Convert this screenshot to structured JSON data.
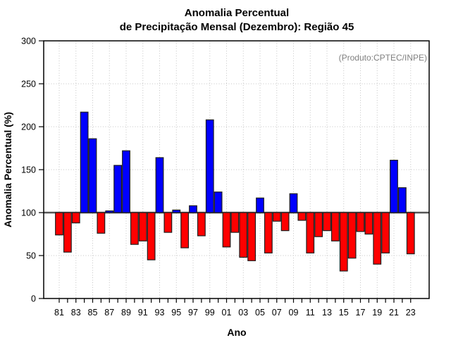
{
  "chart_data": {
    "type": "bar",
    "title": "Anomalia Percentual de Precipitação Mensal (Dezembro): Região 45",
    "title_line1": "Anomalia Percentual",
    "title_line2": "de Precipitação Mensal (Dezembro): Região 45",
    "annotation": "(Produto:CPTEC/INPE)",
    "xlabel": "Ano",
    "ylabel": "Anomalia Percentual (%)",
    "ylim": [
      0,
      300
    ],
    "yticks": [
      0,
      50,
      100,
      150,
      200,
      250,
      300
    ],
    "baseline": 100,
    "grid": true,
    "legend": "none",
    "categories": [
      "81",
      "82",
      "83",
      "84",
      "85",
      "86",
      "87",
      "88",
      "89",
      "90",
      "91",
      "92",
      "93",
      "94",
      "95",
      "96",
      "97",
      "98",
      "99",
      "00",
      "01",
      "02",
      "03",
      "04",
      "05",
      "06",
      "07",
      "08",
      "09",
      "10",
      "11",
      "12",
      "13",
      "14",
      "15",
      "16",
      "17",
      "18",
      "19",
      "20",
      "21",
      "22",
      "23"
    ],
    "x_tick_labels": [
      "81",
      "83",
      "85",
      "87",
      "89",
      "91",
      "93",
      "95",
      "97",
      "99",
      "01",
      "03",
      "05",
      "07",
      "09",
      "11",
      "13",
      "15",
      "17",
      "19",
      "21",
      "23"
    ],
    "values": [
      74,
      54,
      88,
      217,
      186,
      76,
      102,
      155,
      172,
      63,
      67,
      45,
      164,
      77,
      103,
      59,
      108,
      73,
      208,
      124,
      60,
      77,
      48,
      44,
      117,
      53,
      90,
      79,
      122,
      91,
      53,
      72,
      79,
      67,
      32,
      47,
      78,
      75,
      40,
      53,
      161,
      129,
      52
    ],
    "colors": {
      "above_baseline": "#0000ff",
      "below_baseline": "#ff0000",
      "bar_border": "#1e1e1e",
      "baseline_line": "#555555",
      "gridline": "#c4c4c4",
      "frame": "#000000",
      "annotation_text": "#808080"
    }
  }
}
